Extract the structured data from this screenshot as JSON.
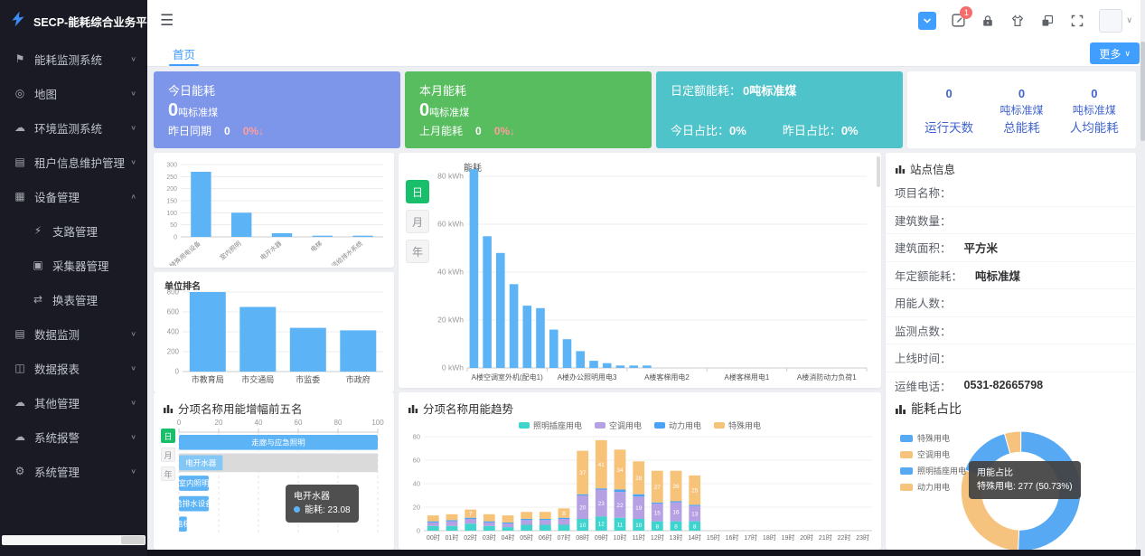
{
  "sidebar": {
    "logo_title": "SECP-能耗综合业务平台",
    "items": [
      {
        "label": "能耗监测系统",
        "icon": "flag-icon",
        "glyph": "⚑",
        "expanded": false
      },
      {
        "label": "地图",
        "icon": "map-pin-icon",
        "glyph": "◎",
        "expanded": false
      },
      {
        "label": "环境监测系统",
        "icon": "cloud-icon",
        "glyph": "☁",
        "expanded": false
      },
      {
        "label": "租户信息维护管理",
        "icon": "tenant-doc-icon",
        "glyph": "▤",
        "expanded": false
      },
      {
        "label": "设备管理",
        "icon": "device-icon",
        "glyph": "▦",
        "expanded": true,
        "children": [
          {
            "label": "支路管理",
            "icon": "branch-circuit-icon",
            "glyph": "⚡"
          },
          {
            "label": "采集器管理",
            "icon": "collector-icon",
            "glyph": "▣"
          },
          {
            "label": "换表管理",
            "icon": "meter-swap-icon",
            "glyph": "⇄"
          }
        ]
      },
      {
        "label": "数据监测",
        "icon": "data-monitor-icon",
        "glyph": "▤",
        "expanded": false
      },
      {
        "label": "数据报表",
        "icon": "report-icon",
        "glyph": "◫",
        "expanded": false
      },
      {
        "label": "其他管理",
        "icon": "other-cloud-icon",
        "glyph": "☁",
        "expanded": false
      },
      {
        "label": "系统报警",
        "icon": "alarm-cloud-icon",
        "glyph": "☁",
        "expanded": false
      },
      {
        "label": "系统管理",
        "icon": "gear-icon",
        "glyph": "⚙",
        "expanded": false
      }
    ]
  },
  "header": {
    "badge_count": "1",
    "icons": [
      "layout-toggle-icon",
      "edit-note-icon",
      "lock-icon",
      "theme-shirt-icon",
      "copy-icon",
      "fullscreen-icon",
      "avatar",
      "chevron-down-icon"
    ]
  },
  "tabs": {
    "active": "首页",
    "more_label": "更多"
  },
  "period_buttons": [
    "日",
    "月",
    "年"
  ],
  "cards": {
    "today": {
      "title": "今日能耗",
      "value": "0",
      "unit": "吨标准煤",
      "footer_label": "昨日同期",
      "footer_value": "0",
      "delta": "0%↓",
      "color": "#7d96ea"
    },
    "month": {
      "title": "本月能耗",
      "value": "0",
      "unit": "吨标准煤",
      "footer_label": "上月能耗",
      "footer_value": "0",
      "delta": "0%↓",
      "color": "#57bd5f"
    },
    "quota": {
      "line1_label": "日定额能耗：",
      "line1_value": "0吨标准煤",
      "today_label": "今日占比：",
      "today_value": "0%",
      "yesterday_label": "昨日占比：",
      "yesterday_value": "0%",
      "color": "#4ec3ca"
    },
    "summary": {
      "stats": [
        {
          "value": "0",
          "unit": "",
          "label": "运行天数"
        },
        {
          "value": "0",
          "unit": "吨标准煤",
          "label": "总能耗"
        },
        {
          "value": "0",
          "unit": "吨标准煤",
          "label": "人均能耗"
        }
      ]
    }
  },
  "site_info": {
    "title": "站点信息",
    "rows": [
      {
        "label": "项目名称：",
        "value": ""
      },
      {
        "label": "建筑数量：",
        "value": ""
      },
      {
        "label": "建筑面积：",
        "value": "平方米"
      },
      {
        "label": "年定额能耗：",
        "value": "吨标准煤"
      },
      {
        "label": "用能人数：",
        "value": ""
      },
      {
        "label": "监测点数：",
        "value": ""
      },
      {
        "label": "上线时间：",
        "value": ""
      },
      {
        "label": "运维电话：",
        "value": "0531-82665798"
      }
    ]
  },
  "chart_data": [
    {
      "id": "subitem-bar",
      "type": "bar",
      "title": "",
      "categories": [
        "特殊用电设备",
        "室内照明",
        "电开水器",
        "电梯",
        "生活给排水系统"
      ],
      "values": [
        270,
        100,
        15,
        5,
        5
      ],
      "ylim": [
        0,
        300
      ],
      "yticks": [
        0,
        50,
        100,
        150,
        200,
        250,
        300
      ],
      "bar_color": "#5cb3f5",
      "rotate_labels": true,
      "grid": true
    },
    {
      "id": "unit-rank",
      "type": "bar",
      "title": "单位排名",
      "categories": [
        "市教育局",
        "市交通局",
        "市监委",
        "市政府"
      ],
      "values": [
        800,
        650,
        440,
        415
      ],
      "ylim": [
        0,
        800
      ],
      "yticks": [
        0,
        200,
        400,
        600,
        800
      ],
      "bar_color": "#5cb3f5",
      "grid": true
    },
    {
      "id": "energy-main",
      "type": "bar",
      "title": "能耗",
      "ylabel": "kWh",
      "values": [
        83,
        55,
        48,
        35,
        26,
        25,
        16,
        12,
        7,
        3,
        2,
        1,
        1,
        1,
        0,
        0,
        0,
        0,
        0,
        0,
        0,
        0,
        0,
        0,
        0,
        0,
        0,
        0,
        0,
        0
      ],
      "ylim": [
        0,
        80
      ],
      "yticks": [
        0,
        20,
        40,
        60,
        80
      ],
      "x_labels": [
        "A楼空调室外机(配电1)",
        "A楼办公照明用电3",
        "A楼客梯用电2",
        "A楼客梯用电1",
        "A楼消防动力负荷1"
      ],
      "bar_color": "#5cb3f5",
      "grid": true
    },
    {
      "id": "growth-top5",
      "type": "hbar",
      "title": "分项名称用能增幅前五名",
      "xlim": [
        0,
        100
      ],
      "xticks": [
        0,
        20,
        40,
        60,
        80,
        100
      ],
      "bars": [
        {
          "label": "走廊与应急照明",
          "value": 100
        },
        {
          "label": "电开水器",
          "value": 22,
          "hover": true
        },
        {
          "label": "室内照明",
          "value": 15
        },
        {
          "label": "给排水设备",
          "value": 15
        },
        {
          "label": "电梯",
          "value": 4
        }
      ],
      "bar_color": "#5cb3f5",
      "hover_bar_color": "#83c7f7",
      "track_color": "#dadada",
      "tooltip": {
        "title": "电开水器",
        "text": "能耗: 23.08"
      }
    },
    {
      "id": "usage-trend",
      "type": "stacked-bar",
      "title": "分项名称用能趋势",
      "categories": [
        "00时",
        "01时",
        "02时",
        "03时",
        "04时",
        "05时",
        "06时",
        "07时",
        "08时",
        "09时",
        "10时",
        "11时",
        "12时",
        "13时",
        "14时",
        "15时",
        "16时",
        "17时",
        "18时",
        "19时",
        "20时",
        "21时",
        "22时",
        "23时"
      ],
      "series": [
        {
          "name": "照明插座用电",
          "color": "#3fd4ce",
          "values": [
            4,
            4,
            6,
            4,
            3,
            5,
            5,
            5,
            10,
            12,
            11,
            10,
            8,
            8,
            8,
            0,
            0,
            0,
            0,
            0,
            0,
            0,
            0,
            0
          ]
        },
        {
          "name": "空调用电",
          "color": "#b5a0e3",
          "values": [
            3,
            4,
            4,
            3,
            3,
            4,
            4,
            5,
            20,
            23,
            22,
            19,
            15,
            16,
            13,
            0,
            0,
            0,
            0,
            0,
            0,
            0,
            0,
            0
          ]
        },
        {
          "name": "动力用电",
          "color": "#4ba3f5",
          "values": [
            1,
            1,
            1,
            1,
            1,
            1,
            1,
            1,
            1,
            1,
            2,
            2,
            1,
            1,
            1,
            0,
            0,
            0,
            0,
            0,
            0,
            0,
            0,
            0
          ]
        },
        {
          "name": "特殊用电",
          "color": "#f7c379",
          "values": [
            5,
            5,
            7,
            6,
            6,
            6,
            6,
            8,
            37,
            41,
            34,
            28,
            27,
            26,
            25,
            0,
            0,
            0,
            0,
            0,
            0,
            0,
            0,
            0
          ]
        }
      ],
      "ylim": [
        0,
        80
      ],
      "yticks": [
        0,
        20,
        40,
        60,
        80
      ],
      "legend_position": "top",
      "grid": true
    },
    {
      "id": "energy-share",
      "type": "donut",
      "title": "能耗占比",
      "slices": [
        {
          "name": "特殊用电",
          "value": 277,
          "pct": 50.73,
          "color": "#56a9f2"
        },
        {
          "name": "空调用电",
          "value": 164,
          "pct": 30.03,
          "color": "#f6c37f"
        },
        {
          "name": "照明插座用电",
          "value": 81,
          "pct": 14.84,
          "color": "#56a9f2"
        },
        {
          "name": "动力用电",
          "value": 24,
          "pct": 4.4,
          "color": "#f6c37f"
        }
      ],
      "legend_position": "top-left",
      "tooltip": {
        "title": "用能占比",
        "text": "特殊用电: 277 (50.73%)"
      }
    }
  ],
  "colors": {
    "accent": "#409eff",
    "active_green": "#19be6b",
    "delta_red": "#ff9d9d",
    "summary_blue": "#4064cc"
  }
}
